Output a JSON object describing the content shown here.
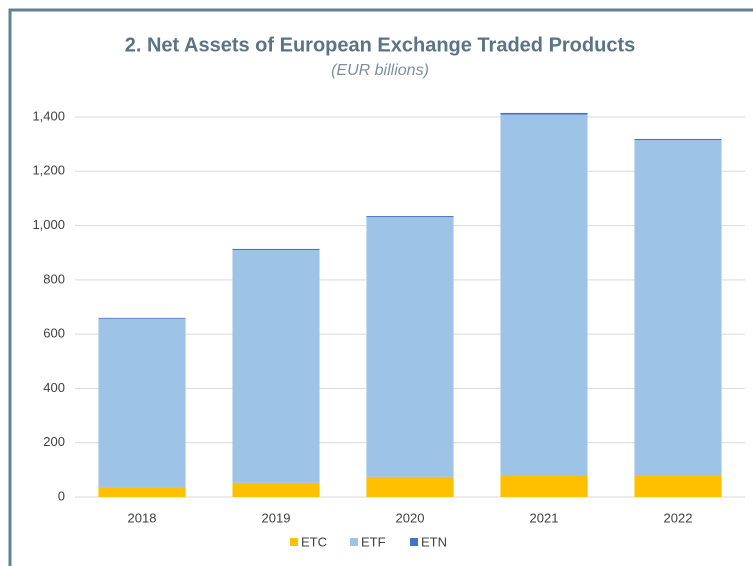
{
  "chart_data": {
    "type": "stacked_bar",
    "title": "2. Net Assets of European Exchange Traded Products",
    "subtitle": "(EUR billions)",
    "categories": [
      "2018",
      "2019",
      "2020",
      "2021",
      "2022"
    ],
    "series": [
      {
        "name": "ETC",
        "color": "#ffc000",
        "values": [
          37,
          52,
          74,
          81,
          81
        ]
      },
      {
        "name": "ETF",
        "color": "#9dc3e6",
        "values": [
          620,
          858,
          957,
          1328,
          1234
        ]
      },
      {
        "name": "ETN",
        "color": "#4472c4",
        "values": [
          3,
          4,
          4,
          6,
          4
        ]
      }
    ],
    "ylim": [
      0,
      1400
    ],
    "yticks": [
      0,
      200,
      400,
      600,
      800,
      {
        "value": 1000,
        "label": "1,000"
      },
      {
        "value": 1200,
        "label": "1,200"
      },
      {
        "value": 1400,
        "label": "1,400"
      }
    ],
    "grid": true,
    "legend": "bottom"
  }
}
